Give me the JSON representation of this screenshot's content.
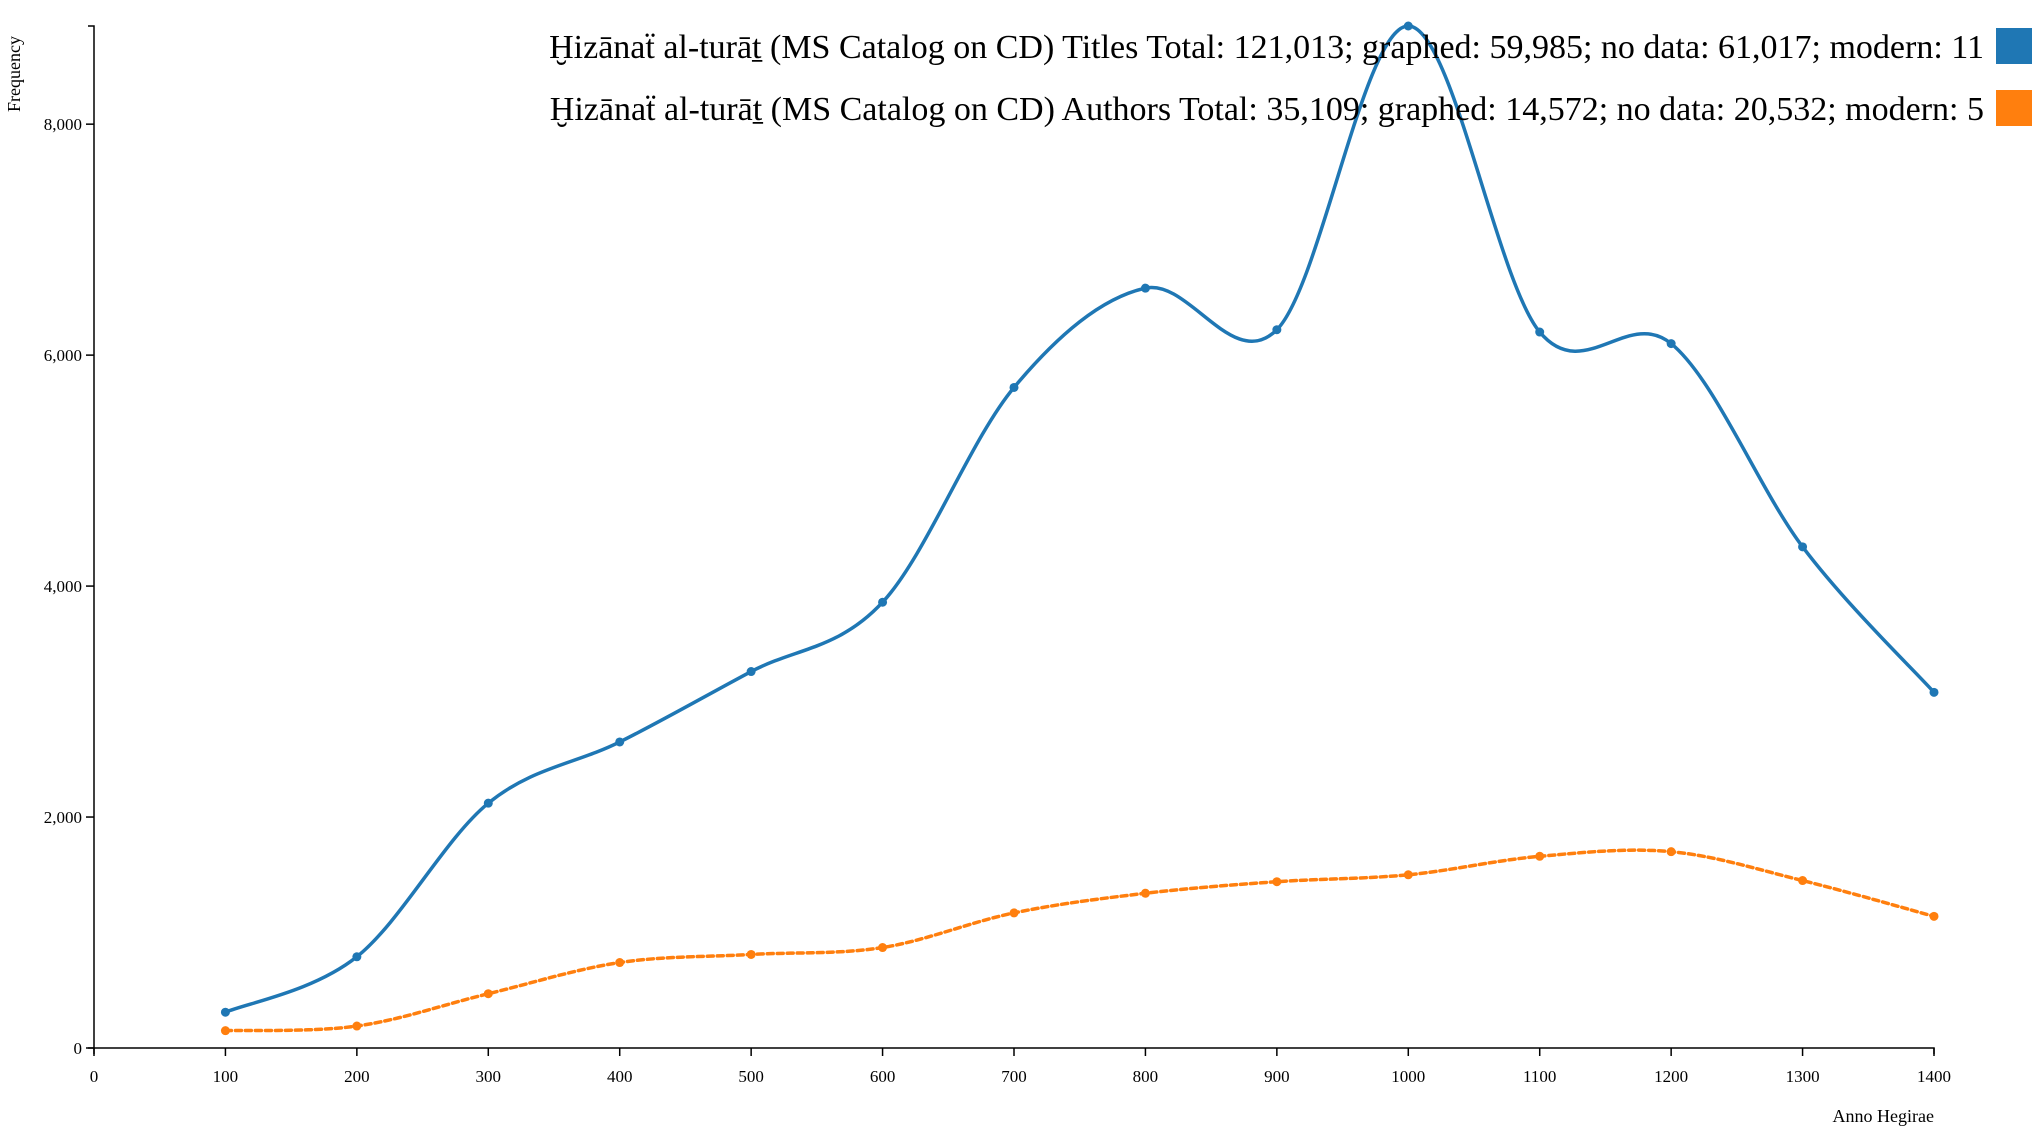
{
  "chart_data": {
    "type": "line",
    "title": "",
    "xlabel": "Anno Hegirae",
    "ylabel": "Frequency",
    "x": [
      100,
      200,
      300,
      400,
      500,
      600,
      700,
      800,
      900,
      1000,
      1100,
      1200,
      1300,
      1400
    ],
    "xlim": [
      0,
      1400
    ],
    "ylim": [
      0,
      8850
    ],
    "x_ticks": [
      "0",
      "100",
      "200",
      "300",
      "400",
      "500",
      "600",
      "700",
      "800",
      "900",
      "1000",
      "1100",
      "1200",
      "1300",
      "1400"
    ],
    "x_tick_values": [
      0,
      100,
      200,
      300,
      400,
      500,
      600,
      700,
      800,
      900,
      1000,
      1100,
      1200,
      1300,
      1400
    ],
    "y_ticks": [
      "0",
      "2,000",
      "4,000",
      "6,000",
      "8,000"
    ],
    "y_tick_values": [
      0,
      2000,
      4000,
      6000,
      8000
    ],
    "grid": false,
    "legend_position": "top-right",
    "series": [
      {
        "name": "Ḫizānaẗ al-turāṯ (MS Catalog on CD) Titles Total: 121,013; graphed: 59,985; no data: 61,017; modern: 11",
        "color": "#1f77b4",
        "line_style": "solid",
        "values": [
          310,
          790,
          2120,
          2650,
          3260,
          3860,
          5720,
          6580,
          6220,
          8850,
          6200,
          6100,
          4340,
          3080
        ]
      },
      {
        "name": "Ḫizānaẗ al-turāṯ (MS Catalog on CD) Authors Total: 35,109; graphed: 14,572; no data: 20,532; modern: 5",
        "color": "#ff7f0e",
        "line_style": "dashed",
        "values": [
          150,
          190,
          470,
          740,
          810,
          870,
          1170,
          1340,
          1440,
          1500,
          1660,
          1700,
          1450,
          1140
        ]
      }
    ]
  }
}
